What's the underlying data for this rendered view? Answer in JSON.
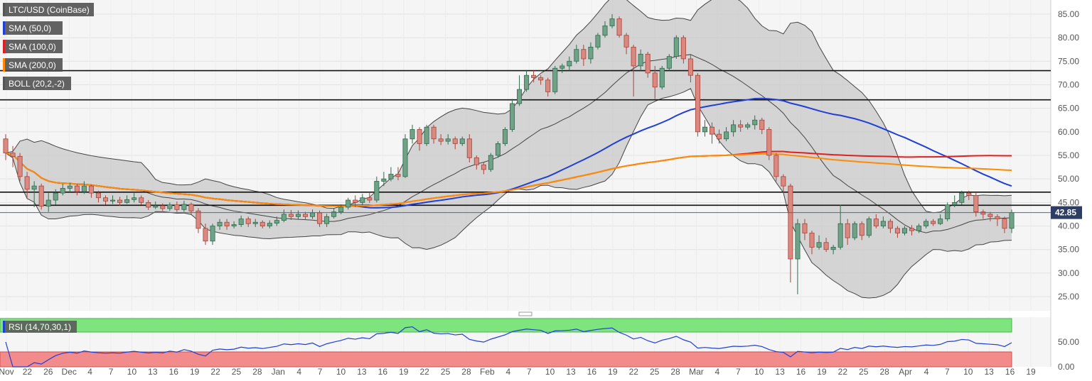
{
  "chart_data": {
    "type": "candlestick",
    "symbol": "LTC/USD (CoinBase)",
    "indicators": [
      {
        "label": "SMA (50,0)",
        "color": "#1f3fd6"
      },
      {
        "label": "SMA (100,0)",
        "color": "#e02020"
      },
      {
        "label": "SMA (200,0)",
        "color": "#ff8c00"
      },
      {
        "label": "BOLL (20,2,-2)",
        "color": "#555555"
      }
    ],
    "current_price": "42.85",
    "ylim": [
      22,
      88
    ],
    "yticks": [
      "85.00",
      "80.00",
      "75.00",
      "70.00",
      "65.00",
      "60.00",
      "55.00",
      "50.00",
      "45.00",
      "40.00",
      "35.00",
      "30.00",
      "25.00"
    ],
    "xticks": [
      "Nov",
      "22",
      "26",
      "Dec",
      "4",
      "7",
      "10",
      "13",
      "16",
      "19",
      "22",
      "25",
      "28",
      "Jan",
      "4",
      "7",
      "10",
      "13",
      "16",
      "19",
      "22",
      "25",
      "28",
      "Feb",
      "4",
      "7",
      "10",
      "13",
      "16",
      "19",
      "22",
      "25",
      "28",
      "Mar",
      "4",
      "7",
      "10",
      "13",
      "16",
      "19",
      "22",
      "25",
      "28",
      "Apr",
      "4",
      "7",
      "10",
      "13",
      "16",
      "19"
    ],
    "horizontal_levels": [
      73.0,
      66.8,
      47.2,
      44.4
    ],
    "candles": [
      [
        58.5,
        55.5,
        59.5,
        54.0
      ],
      [
        55.5,
        54.8,
        57.0,
        52.5
      ],
      [
        54.8,
        50.5,
        55.5,
        49.5
      ],
      [
        50.5,
        47.8,
        51.5,
        46.0
      ],
      [
        47.8,
        48.5,
        49.5,
        44.0
      ],
      [
        48.5,
        44.2,
        49.0,
        43.5
      ],
      [
        44.2,
        45.5,
        47.0,
        43.0
      ],
      [
        45.5,
        47.0,
        47.8,
        44.5
      ],
      [
        47.0,
        48.0,
        49.0,
        46.5
      ],
      [
        48.0,
        48.5,
        49.2,
        47.2
      ],
      [
        48.5,
        47.3,
        49.0,
        46.5
      ],
      [
        47.3,
        48.5,
        49.5,
        46.8
      ],
      [
        48.5,
        47.0,
        48.8,
        46.0
      ],
      [
        47.0,
        46.0,
        47.5,
        45.0
      ],
      [
        46.0,
        45.3,
        46.5,
        44.5
      ],
      [
        45.3,
        45.5,
        46.5,
        44.7
      ],
      [
        45.5,
        45.0,
        46.2,
        44.3
      ],
      [
        45.0,
        45.6,
        46.5,
        44.7
      ],
      [
        45.6,
        46.0,
        47.0,
        45.0
      ],
      [
        46.0,
        45.0,
        46.5,
        44.5
      ],
      [
        45.0,
        44.0,
        45.5,
        43.4
      ],
      [
        44.0,
        44.3,
        45.2,
        43.6
      ],
      [
        44.3,
        43.7,
        44.8,
        43.2
      ],
      [
        43.7,
        44.5,
        45.0,
        43.2
      ],
      [
        44.5,
        43.5,
        45.2,
        43.0
      ],
      [
        43.5,
        44.6,
        45.4,
        43.0
      ],
      [
        44.6,
        43.2,
        45.0,
        42.5
      ],
      [
        43.2,
        39.5,
        43.8,
        38.5
      ],
      [
        39.5,
        36.8,
        40.5,
        36.0
      ],
      [
        36.8,
        40.0,
        40.5,
        36.0
      ],
      [
        40.0,
        40.8,
        41.5,
        39.2
      ],
      [
        40.8,
        40.0,
        41.5,
        39.2
      ],
      [
        40.0,
        40.3,
        41.0,
        39.5
      ],
      [
        40.3,
        41.5,
        42.2,
        39.8
      ],
      [
        41.5,
        40.5,
        42.0,
        39.8
      ],
      [
        40.5,
        40.8,
        41.5,
        39.8
      ],
      [
        40.8,
        40.0,
        41.2,
        39.5
      ],
      [
        40.0,
        40.6,
        41.2,
        39.5
      ],
      [
        40.6,
        41.2,
        42.0,
        40.0
      ],
      [
        41.2,
        42.5,
        43.5,
        40.8
      ],
      [
        42.5,
        42.0,
        43.4,
        41.3
      ],
      [
        42.0,
        42.5,
        43.3,
        41.5
      ],
      [
        42.5,
        42.0,
        43.0,
        41.3
      ],
      [
        42.0,
        42.8,
        43.5,
        41.5
      ],
      [
        42.8,
        40.5,
        43.3,
        39.8
      ],
      [
        40.5,
        42.0,
        42.6,
        39.8
      ],
      [
        42.0,
        43.0,
        43.8,
        41.6
      ],
      [
        43.0,
        44.0,
        44.6,
        42.5
      ],
      [
        44.0,
        45.5,
        46.0,
        43.5
      ],
      [
        45.5,
        45.0,
        46.5,
        44.0
      ],
      [
        45.0,
        46.0,
        46.8,
        44.5
      ],
      [
        46.0,
        45.5,
        47.2,
        44.9
      ],
      [
        45.5,
        49.5,
        50.5,
        45.0
      ],
      [
        49.5,
        50.0,
        51.5,
        48.5
      ],
      [
        50.0,
        51.0,
        52.5,
        49.5
      ],
      [
        51.0,
        50.5,
        52.5,
        49.7
      ],
      [
        50.5,
        58.5,
        59.5,
        50.2
      ],
      [
        58.5,
        60.5,
        61.5,
        57.5
      ],
      [
        60.5,
        57.5,
        61.0,
        56.0
      ],
      [
        57.5,
        61.0,
        61.5,
        57.0
      ],
      [
        61.0,
        58.5,
        61.5,
        57.5
      ],
      [
        58.5,
        58.0,
        59.5,
        57.2
      ],
      [
        58.0,
        58.5,
        59.5,
        57.3
      ],
      [
        58.5,
        57.5,
        59.0,
        56.3
      ],
      [
        57.5,
        58.5,
        59.0,
        57.0
      ],
      [
        58.5,
        54.5,
        59.5,
        53.5
      ],
      [
        54.5,
        53.0,
        55.0,
        52.0
      ],
      [
        53.0,
        52.0,
        53.5,
        51.0
      ],
      [
        52.0,
        55.0,
        55.5,
        51.5
      ],
      [
        55.0,
        57.5,
        58.0,
        54.5
      ],
      [
        57.5,
        60.5,
        61.0,
        57.0
      ],
      [
        60.5,
        66.0,
        67.0,
        60.0
      ],
      [
        66.0,
        69.0,
        72.0,
        65.5
      ],
      [
        69.0,
        72.0,
        73.0,
        68.5
      ],
      [
        72.0,
        71.5,
        73.0,
        70.5
      ],
      [
        71.5,
        71.0,
        72.0,
        70.0
      ],
      [
        71.0,
        68.5,
        71.5,
        67.5
      ],
      [
        68.5,
        73.5,
        74.0,
        68.0
      ],
      [
        73.5,
        74.0,
        74.5,
        72.5
      ],
      [
        74.0,
        75.0,
        76.0,
        73.0
      ],
      [
        75.0,
        77.5,
        78.5,
        74.5
      ],
      [
        77.5,
        75.5,
        78.5,
        74.0
      ],
      [
        75.5,
        78.0,
        79.0,
        74.5
      ],
      [
        78.0,
        80.5,
        81.0,
        77.5
      ],
      [
        80.5,
        82.5,
        83.5,
        80.0
      ],
      [
        82.5,
        84.0,
        85.0,
        82.0
      ],
      [
        84.0,
        80.5,
        84.5,
        80.0
      ],
      [
        80.5,
        78.0,
        81.0,
        76.5
      ],
      [
        78.0,
        74.0,
        78.5,
        67.5
      ],
      [
        74.0,
        76.5,
        77.5,
        73.0
      ],
      [
        76.5,
        72.5,
        77.0,
        71.5
      ],
      [
        72.5,
        69.5,
        74.0,
        67.0
      ],
      [
        69.5,
        73.5,
        74.0,
        69.0
      ],
      [
        73.5,
        76.0,
        76.5,
        73.0
      ],
      [
        76.0,
        80.0,
        80.5,
        75.5
      ],
      [
        80.0,
        75.5,
        80.5,
        74.5
      ],
      [
        75.5,
        72.0,
        76.5,
        70.5
      ],
      [
        72.0,
        60.0,
        72.5,
        59.0
      ],
      [
        60.0,
        61.0,
        62.5,
        59.0
      ],
      [
        61.0,
        59.5,
        62.0,
        57.5
      ],
      [
        59.5,
        58.5,
        60.5,
        57.5
      ],
      [
        58.5,
        60.0,
        61.0,
        58.0
      ],
      [
        60.0,
        61.5,
        62.5,
        59.0
      ],
      [
        61.5,
        61.0,
        62.5,
        60.0
      ],
      [
        61.0,
        61.5,
        62.0,
        60.5
      ],
      [
        61.5,
        62.5,
        63.5,
        60.5
      ],
      [
        62.5,
        60.5,
        63.0,
        59.5
      ],
      [
        60.5,
        55.0,
        61.0,
        54.0
      ],
      [
        55.0,
        50.5,
        55.5,
        49.5
      ],
      [
        50.5,
        48.5,
        51.0,
        47.0
      ],
      [
        48.5,
        33.0,
        49.0,
        28.0
      ],
      [
        33.0,
        40.5,
        41.5,
        25.5
      ],
      [
        40.5,
        38.5,
        41.5,
        37.0
      ],
      [
        38.5,
        35.5,
        39.0,
        34.0
      ],
      [
        35.5,
        36.5,
        38.0,
        35.0
      ],
      [
        36.5,
        35.0,
        37.5,
        34.5
      ],
      [
        35.0,
        35.5,
        36.0,
        34.0
      ],
      [
        35.5,
        40.5,
        44.5,
        35.0
      ],
      [
        40.5,
        37.5,
        41.5,
        36.0
      ],
      [
        37.5,
        40.5,
        41.0,
        37.0
      ],
      [
        40.5,
        38.0,
        41.0,
        37.0
      ],
      [
        38.0,
        41.5,
        42.0,
        37.5
      ],
      [
        41.5,
        40.0,
        42.5,
        39.5
      ],
      [
        40.0,
        41.0,
        42.0,
        39.5
      ],
      [
        41.0,
        39.5,
        41.5,
        38.5
      ],
      [
        39.5,
        38.5,
        40.0,
        37.5
      ],
      [
        38.5,
        39.5,
        40.0,
        38.0
      ],
      [
        39.5,
        39.0,
        40.2,
        38.0
      ],
      [
        39.0,
        40.0,
        40.5,
        38.5
      ],
      [
        40.0,
        41.0,
        41.5,
        39.5
      ],
      [
        41.0,
        40.5,
        41.5,
        40.0
      ],
      [
        40.5,
        41.5,
        42.5,
        40.2
      ],
      [
        41.5,
        44.5,
        45.0,
        41.0
      ],
      [
        44.5,
        45.0,
        46.5,
        44.0
      ],
      [
        45.0,
        47.0,
        47.5,
        44.5
      ],
      [
        47.0,
        46.5,
        47.5,
        45.5
      ],
      [
        46.5,
        43.0,
        47.0,
        42.0
      ],
      [
        43.0,
        42.5,
        43.5,
        41.5
      ],
      [
        42.5,
        42.0,
        43.0,
        41.0
      ],
      [
        42.0,
        41.5,
        42.5,
        40.0
      ],
      [
        41.5,
        39.5,
        42.0,
        38.5
      ],
      [
        39.5,
        42.85,
        43.5,
        38.5
      ]
    ],
    "rsi": {
      "label": "RSI (14,70,30,1)",
      "ticks": [
        "50.00",
        "0.00"
      ],
      "overbought": 70,
      "oversold": 30
    }
  }
}
